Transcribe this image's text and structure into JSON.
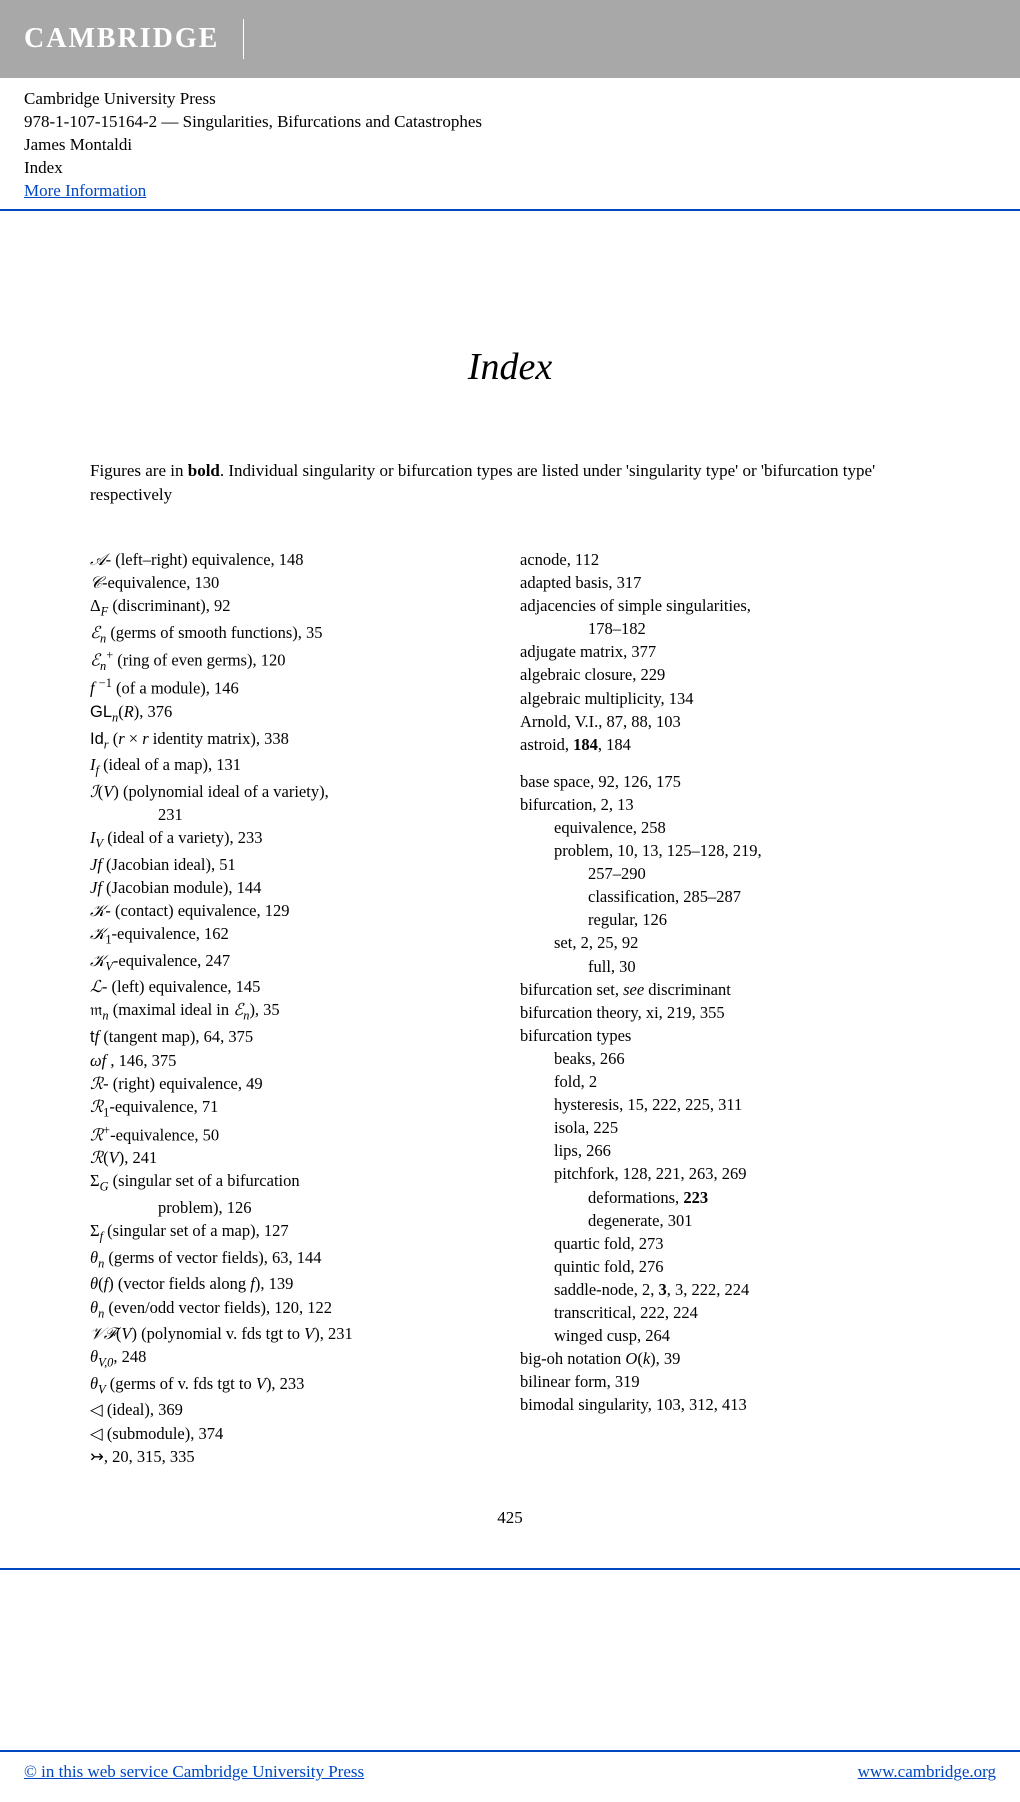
{
  "header": {
    "logo": "CAMBRIDGE",
    "publisher": "Cambridge University Press",
    "isbn_title": "978-1-107-15164-2 — Singularities, Bifurcations and Catastrophes",
    "author": "James Montaldi",
    "section": "Index",
    "more_info": "More Information"
  },
  "title": "Index",
  "intro_prefix": "Figures are in ",
  "intro_bold": "bold",
  "intro_suffix": ". Individual singularity or bifurcation types are listed under 'singularity type' or 'bifurcation type' respectively",
  "left": [
    {
      "html": "<span class='script'>𝒜</span>- (left–right) equivalence, 148"
    },
    {
      "html": "<span class='script'>𝒞</span>-equivalence, 130"
    },
    {
      "html": "Δ<sub><span class='math'>F</span></sub> (discriminant), 92"
    },
    {
      "html": "<span class='script'>ℰ</span><sub><span class='math'>n</span></sub> (germs of smooth functions), 35"
    },
    {
      "html": "<span class='script'>ℰ</span><sub><span class='math'>n</span></sub><sup>+</sup> (ring of even germs), 120"
    },
    {
      "html": "<span class='math'>f</span> <sup>−1</sup> (of a module), 146"
    },
    {
      "html": "<span class='sf'>GL</span><sub><span class='math'>n</span></sub>(<span class='math'>R</span>), 376"
    },
    {
      "html": "<span class='sf'>Id</span><sub><span class='math'>r</span></sub> (<span class='math'>r</span> × <span class='math'>r</span> identity matrix), 338"
    },
    {
      "html": "<span class='math'>I<sub>f</sub></span> (ideal of a map), 131"
    },
    {
      "html": "<span class='script'>ℐ</span>(<span class='math'>V</span>) (polynomial ideal of a variety),"
    },
    {
      "html": "231",
      "indent": 2
    },
    {
      "html": "<span class='math'>I<sub>V</sub></span> (ideal of a variety), 233"
    },
    {
      "html": "<span class='math'>Jf</span> (Jacobian ideal), 51"
    },
    {
      "html": "<span class='math'>Jf</span> (Jacobian module), 144"
    },
    {
      "html": "<span class='script'>𝒦</span>- (contact) equivalence, 129"
    },
    {
      "html": "<span class='script'>𝒦</span><sub>1</sub>-equivalence, 162"
    },
    {
      "html": "<span class='script'>𝒦</span><sub><span class='math'>V</span></sub>-equivalence, 247"
    },
    {
      "html": "<span class='script'>ℒ</span>- (left) equivalence, 145"
    },
    {
      "html": "<span class='sym'>𝔪</span><sub><span class='math'>n</span></sub> (maximal ideal in <span class='script'>ℰ</span><sub><span class='math'>n</span></sub>), 35"
    },
    {
      "html": "<span class='sf'>t</span><span class='math'>f</span> (tangent map), 64, 375"
    },
    {
      "html": "<span class='math'>ωf</span> , 146, 375"
    },
    {
      "html": "<span class='script'>ℛ</span>- (right) equivalence, 49"
    },
    {
      "html": "<span class='script'>ℛ</span><sub>1</sub>-equivalence, 71"
    },
    {
      "html": "<span class='script'>ℛ</span><sup>+</sup>-equivalence, 50"
    },
    {
      "html": "<span class='script'>ℛ</span>(<span class='math'>V</span>), 241"
    },
    {
      "html": "Σ<sub><span class='math'>G</span></sub> (singular set of a bifurcation"
    },
    {
      "html": "problem), 126",
      "indent": 2
    },
    {
      "html": "Σ<sub><span class='math'>f</span></sub> (singular set of a map), 127"
    },
    {
      "html": "<span class='math'>θ<sub>n</sub></span> (germs of vector fields), 63, 144"
    },
    {
      "html": "<span class='math'>θ</span>(<span class='math'>f</span>) (vector fields along <span class='math'>f</span>), 139"
    },
    {
      "html": "<span class='math'>θ<sub>n</sub></span> (even/odd vector fields), 120, 122"
    },
    {
      "html": "<span class='script'>𝒱ℱ</span>(<span class='math'>V</span>) (polynomial v. fds tgt to <span class='math'>V</span>), 231"
    },
    {
      "html": "<span class='math'>θ<sub>V,0</sub></span>, 248"
    },
    {
      "html": "<span class='math'>θ<sub>V</sub></span> (germs of v. fds tgt to <span class='math'>V</span>), 233"
    },
    {
      "html": "◁ (ideal), 369"
    },
    {
      "html": "◁ (submodule), 374"
    },
    {
      "html": "↣, 20, 315, 335"
    }
  ],
  "right": [
    {
      "html": "acnode, 112"
    },
    {
      "html": "adapted basis, 317"
    },
    {
      "html": "adjacencies of simple singularities,"
    },
    {
      "html": "178–182",
      "indent": 2
    },
    {
      "html": "adjugate matrix, 377"
    },
    {
      "html": "algebraic closure, 229"
    },
    {
      "html": "algebraic multiplicity, 134"
    },
    {
      "html": "Arnold, V.I., 87, 88, 103"
    },
    {
      "html": "astroid, <b>184</b>, 184"
    },
    {
      "spacer": true
    },
    {
      "html": "base space, 92, 126, 175"
    },
    {
      "html": "bifurcation, 2, 13"
    },
    {
      "html": "equivalence, 258",
      "indent": 1
    },
    {
      "html": "problem, 10, 13, 125–128, 219,",
      "indent": 1
    },
    {
      "html": "257–290",
      "indent": 2
    },
    {
      "html": "classification, 285–287",
      "indent": 2
    },
    {
      "html": "regular, 126",
      "indent": 2
    },
    {
      "html": "set, 2, 25, 92",
      "indent": 1
    },
    {
      "html": "full, 30",
      "indent": 2
    },
    {
      "html": "bifurcation set, <i>see</i> discriminant"
    },
    {
      "html": "bifurcation theory, xi, 219, 355"
    },
    {
      "html": "bifurcation types"
    },
    {
      "html": "beaks, 266",
      "indent": 1
    },
    {
      "html": "fold, 2",
      "indent": 1
    },
    {
      "html": "hysteresis, 15, 222, 225, 311",
      "indent": 1
    },
    {
      "html": "isola, 225",
      "indent": 1
    },
    {
      "html": "lips, 266",
      "indent": 1
    },
    {
      "html": "pitchfork, 128, 221, 263, 269",
      "indent": 1
    },
    {
      "html": "deformations, <b>223</b>",
      "indent": 2
    },
    {
      "html": "degenerate, 301",
      "indent": 2
    },
    {
      "html": "quartic fold, 273",
      "indent": 1
    },
    {
      "html": "quintic fold, 276",
      "indent": 1
    },
    {
      "html": "saddle-node, 2, <b>3</b>, 3, 222, 224",
      "indent": 1
    },
    {
      "html": "transcritical, 222, 224",
      "indent": 1
    },
    {
      "html": "winged cusp, 264",
      "indent": 1
    },
    {
      "html": "big-oh notation <span class='math'>O</span>(<span class='math'>k</span>), 39"
    },
    {
      "html": "bilinear form, 319"
    },
    {
      "html": "bimodal singularity, 103, 312, 413"
    }
  ],
  "page_number": "425",
  "footer": {
    "left": "© in this web service Cambridge University Press",
    "right": "www.cambridge.org"
  }
}
